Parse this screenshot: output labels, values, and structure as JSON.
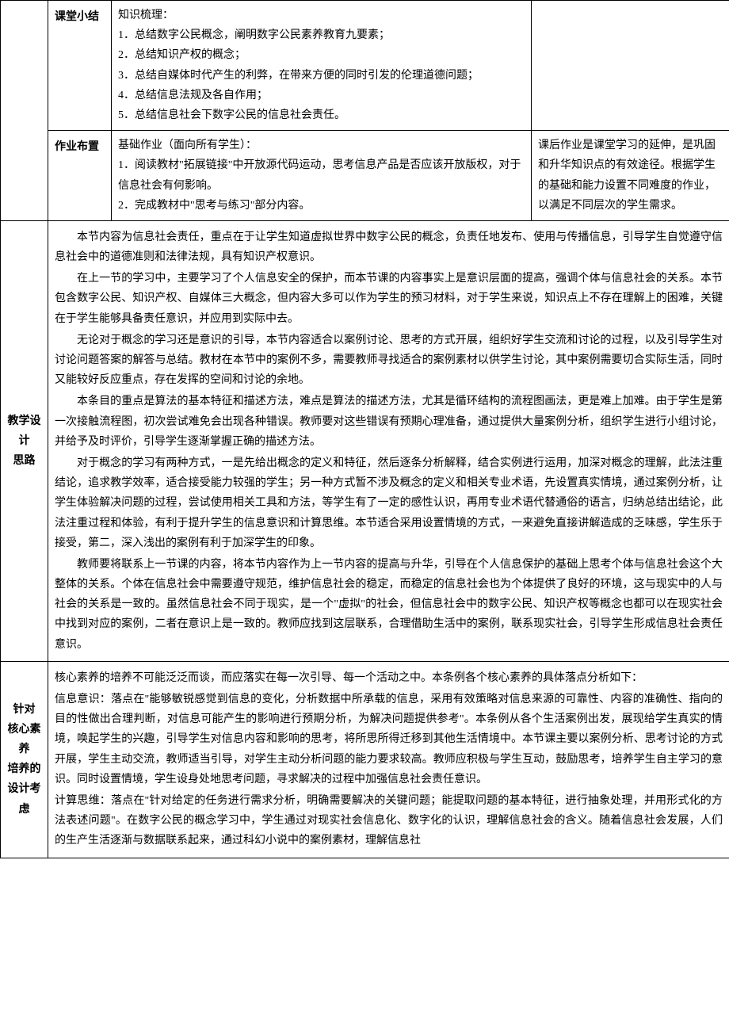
{
  "row1": {
    "label": "课堂小结",
    "content": {
      "intro": "知识梳理：",
      "items": [
        "1．总结数字公民概念，阐明数字公民素养教育九要素；",
        "2．总结知识产权的概念；",
        "3．总结自媒体时代产生的利弊，在带来方便的同时引发的伦理道德问题；",
        "4．总结信息法规及各自作用；",
        "5．总结信息社会下数字公民的信息社会责任。"
      ]
    }
  },
  "row2": {
    "label": "作业布置",
    "left": {
      "intro": "基础作业（面向所有学生）：",
      "items": [
        "1．阅读教材\"拓展链接\"中开放源代码运动，思考信息产品是否应该开放版权，对于信息社会有何影响。",
        "2．完成教材中\"思考与练习\"部分内容。"
      ]
    },
    "right": "课后作业是课堂学习的延伸，是巩固和升华知识点的有效途径。根据学生的基础和能力设置不同难度的作业，以满足不同层次的学生需求。"
  },
  "row3": {
    "label_line1": "教学设计",
    "label_line2": "思路",
    "paragraphs": [
      "本节内容为信息社会责任，重点在于让学生知道虚拟世界中数字公民的概念，负责任地发布、使用与传播信息，引导学生自觉遵守信息社会中的道德准则和法律法规，具有知识产权意识。",
      "在上一节的学习中，主要学习了个人信息安全的保护，而本节课的内容事实上是意识层面的提高，强调个体与信息社会的关系。本节包含数字公民、知识产权、自媒体三大概念，但内容大多可以作为学生的预习材料，对于学生来说，知识点上不存在理解上的困难，关键在于学生能够具备责任意识，并应用到实际中去。",
      "无论对于概念的学习还是意识的引导，本节内容适合以案例讨论、思考的方式开展，组织好学生交流和讨论的过程，以及引导学生对讨论问题答案的解答与总结。教材在本节中的案例不多，需要教师寻找适合的案例素材以供学生讨论，其中案例需要切合实际生活，同时又能较好反应重点，存在发挥的空间和讨论的余地。",
      "本条目的重点是算法的基本特征和描述方法，难点是算法的描述方法，尤其是循环结构的流程图画法，更是难上加难。由于学生是第一次接触流程图，初次尝试难免会出现各种错误。教师要对这些错误有预期心理准备，通过提供大量案例分析，组织学生进行小组讨论，并给予及时评价，引导学生逐渐掌握正确的描述方法。",
      "对于概念的学习有两种方式，一是先给出概念的定义和特征，然后逐条分析解释，结合实例进行运用，加深对概念的理解，此法注重结论，追求教学效率，适合接受能力较强的学生；另一种方式暂不涉及概念的定义和相关专业术语，先设置真实情境，通过案例分析，让学生体验解决问题的过程，尝试使用相关工具和方法，等学生有了一定的感性认识，再用专业术语代替通俗的语言，归纳总结出结论，此法注重过程和体验，有利于提升学生的信息意识和计算思维。本节适合采用设置情境的方式，一来避免直接讲解造成的乏味感，学生乐于接受，第二，深入浅出的案例有利于加深学生的印象。",
      "教师要将联系上一节课的内容，将本节内容作为上一节内容的提高与升华，引导在个人信息保护的基础上思考个体与信息社会这个大整体的关系。个体在信息社会中需要遵守规范，维护信息社会的稳定，而稳定的信息社会也为个体提供了良好的环境，这与现实中的人与社会的关系是一致的。虽然信息社会不同于现实，是一个\"虚拟\"的社会，但信息社会中的数字公民、知识产权等概念也都可以在现实社会中找到对应的案例，二者在意识上是一致的。教师应找到这层联系，合理借助生活中的案例，联系现实社会，引导学生形成信息社会责任意识。"
    ]
  },
  "row4": {
    "label_line1": "针对",
    "label_line2": "核心素养",
    "label_line3": "培养的",
    "label_line4": "设计考虑",
    "intro": "核心素养的培养不可能泛泛而谈，而应落实在每一次引导、每一个活动之中。本条例各个核心素养的具体落点分析如下：",
    "p1": "信息意识：落点在\"能够敏锐感觉到信息的变化，分析数据中所承载的信息，采用有效策略对信息来源的可靠性、内容的准确性、指向的目的性做出合理判断，对信息可能产生的影响进行预期分析，为解决问题提供参考\"。本条例从各个生活案例出发，展现给学生真实的情境，唤起学生的兴趣，引导学生对信息内容和影响的思考，将所思所得迁移到其他生活情境中。本节课主要以案例分析、思考讨论的方式开展，学生主动交流，教师适当引导，对学生主动分析问题的能力要求较高。教师应积极与学生互动，鼓励思考，培养学生自主学习的意识。同时设置情境，学生设身处地思考问题，寻求解决的过程中加强信息社会责任意识。",
    "p2": "计算思维：落点在\"针对给定的任务进行需求分析，明确需要解决的关键问题；能提取问题的基本特征，进行抽象处理，并用形式化的方法表述问题\"。在数字公民的概念学习中，学生通过对现实社会信息化、数字化的认识，理解信息社会的含义。随着信息社会发展，人们的生产生活逐渐与数据联系起来，通过科幻小说中的案例素材，理解信息社"
  }
}
